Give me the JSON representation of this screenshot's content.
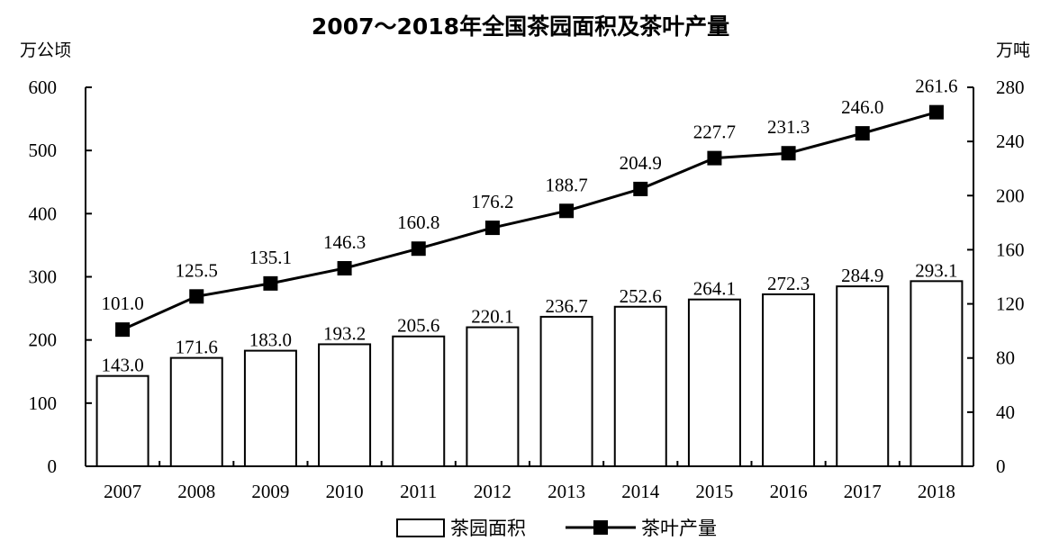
{
  "chart_data": {
    "type": "bar",
    "title": "2007～2018年全国茶园面积及茶叶产量",
    "categories": [
      "2007",
      "2008",
      "2009",
      "2010",
      "2011",
      "2012",
      "2013",
      "2014",
      "2015",
      "2016",
      "2017",
      "2018"
    ],
    "left_axis": {
      "unit": "万公顷",
      "ylim": [
        0,
        600
      ],
      "ticks": [
        "0",
        "100",
        "200",
        "300",
        "400",
        "500",
        "600"
      ]
    },
    "right_axis": {
      "unit": "万吨",
      "ylim": [
        0,
        280
      ],
      "ticks": [
        "0",
        "40",
        "80",
        "120",
        "160",
        "200",
        "240",
        "280"
      ]
    },
    "series": [
      {
        "name": "茶园面积",
        "type": "bar",
        "axis": "left",
        "values": [
          143.0,
          171.6,
          183.0,
          193.2,
          205.6,
          220.1,
          236.7,
          252.6,
          264.1,
          272.3,
          284.9,
          293.1
        ],
        "labels": [
          "143.0",
          "171.6",
          "183.0",
          "193.2",
          "205.6",
          "220.1",
          "236.7",
          "252.6",
          "264.1",
          "272.3",
          "284.9",
          "293.1"
        ]
      },
      {
        "name": "茶叶产量",
        "type": "line",
        "axis": "right",
        "values": [
          101.0,
          125.5,
          135.1,
          146.3,
          160.8,
          176.2,
          188.7,
          204.9,
          227.7,
          231.3,
          246.0,
          261.6
        ],
        "labels": [
          "101.0",
          "125.5",
          "135.1",
          "146.3",
          "160.8",
          "176.2",
          "188.7",
          "204.9",
          "227.7",
          "231.3",
          "246.0",
          "261.6"
        ]
      }
    ],
    "grid": false,
    "legend": "bottom"
  }
}
